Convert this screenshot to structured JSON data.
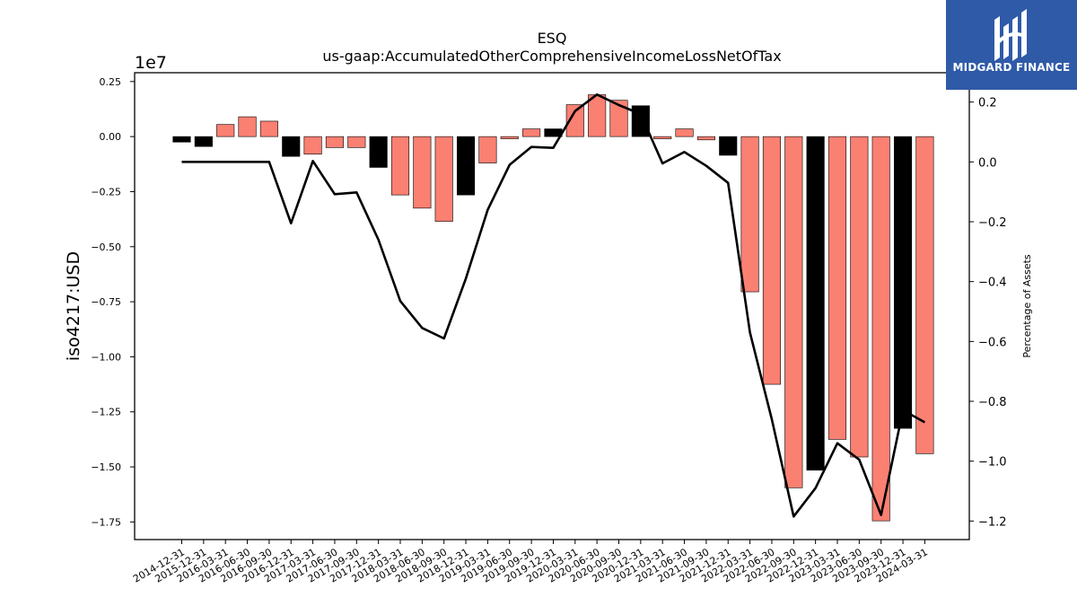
{
  "brand": {
    "name": "MIDGARD FINANCE",
    "color": "#2f5aa8"
  },
  "chart_data": {
    "type": "bar",
    "title": "ESQ",
    "subtitle": "us-gaap:AccumulatedOtherComprehensiveIncomeLossNetOfTax",
    "ylabel": "iso4217:USD",
    "y2label": "Percentage of Assets",
    "y_exponent": "1e7",
    "ylim": [
      -1.83,
      0.29
    ],
    "y2lim": [
      -1.262,
      0.298
    ],
    "yticks": [
      "0.25",
      "0.00",
      "−0.25",
      "−0.50",
      "−0.75",
      "−1.00",
      "−1.25",
      "−1.50",
      "−1.75"
    ],
    "y2ticks": [
      "0.2",
      "0.0",
      "−0.2",
      "−0.4",
      "−0.6",
      "−0.8",
      "−1.0",
      "−1.2"
    ],
    "categories": [
      "2014-12-31",
      "2015-12-31",
      "2016-03-31",
      "2016-06-30",
      "2016-09-30",
      "2016-12-31",
      "2017-03-31",
      "2017-06-30",
      "2017-09-30",
      "2017-12-31",
      "2018-03-31",
      "2018-06-30",
      "2018-09-30",
      "2018-12-31",
      "2019-03-31",
      "2019-06-30",
      "2019-09-30",
      "2019-12-31",
      "2020-03-31",
      "2020-06-30",
      "2020-09-30",
      "2020-12-31",
      "2021-03-31",
      "2021-06-30",
      "2021-09-30",
      "2021-12-31",
      "2022-03-31",
      "2022-06-30",
      "2022-09-30",
      "2022-12-31",
      "2023-03-31",
      "2023-06-30",
      "2023-09-30",
      "2023-12-31",
      "2024-03-31"
    ],
    "values": [
      -0.025,
      -0.045,
      0.055,
      0.09,
      0.07,
      -0.09,
      -0.08,
      -0.05,
      -0.05,
      -0.14,
      -0.265,
      -0.325,
      -0.385,
      -0.265,
      -0.12,
      -0.01,
      0.035,
      0.035,
      0.145,
      0.19,
      0.165,
      0.14,
      -0.01,
      0.035,
      -0.015,
      -0.085,
      -0.705,
      -1.125,
      -1.595,
      -1.515,
      -1.375,
      -1.455,
      -1.745,
      -1.325,
      -1.44
    ],
    "bar_colors": [
      "#000000",
      "#000000",
      "#fa8072",
      "#fa8072",
      "#fa8072",
      "#000000",
      "#fa8072",
      "#fa8072",
      "#fa8072",
      "#000000",
      "#fa8072",
      "#fa8072",
      "#fa8072",
      "#000000",
      "#fa8072",
      "#fa8072",
      "#fa8072",
      "#000000",
      "#fa8072",
      "#fa8072",
      "#fa8072",
      "#000000",
      "#fa8072",
      "#fa8072",
      "#fa8072",
      "#000000",
      "#fa8072",
      "#fa8072",
      "#fa8072",
      "#000000",
      "#fa8072",
      "#fa8072",
      "#fa8072",
      "#000000",
      "#fa8072"
    ],
    "line_series": {
      "axis": "right",
      "color": "#000000",
      "values": [
        0.0,
        0.0,
        0.0,
        0.0,
        0.0,
        -0.205,
        0.003,
        -0.108,
        -0.102,
        -0.26,
        -0.465,
        -0.555,
        -0.59,
        -0.39,
        -0.16,
        -0.01,
        0.05,
        0.047,
        0.17,
        0.225,
        0.19,
        0.16,
        -0.005,
        0.033,
        -0.013,
        -0.07,
        -0.57,
        -0.86,
        -1.185,
        -1.09,
        -0.94,
        -0.995,
        -1.18,
        -0.83,
        -0.87
      ]
    },
    "grid": false,
    "legend": "none"
  }
}
